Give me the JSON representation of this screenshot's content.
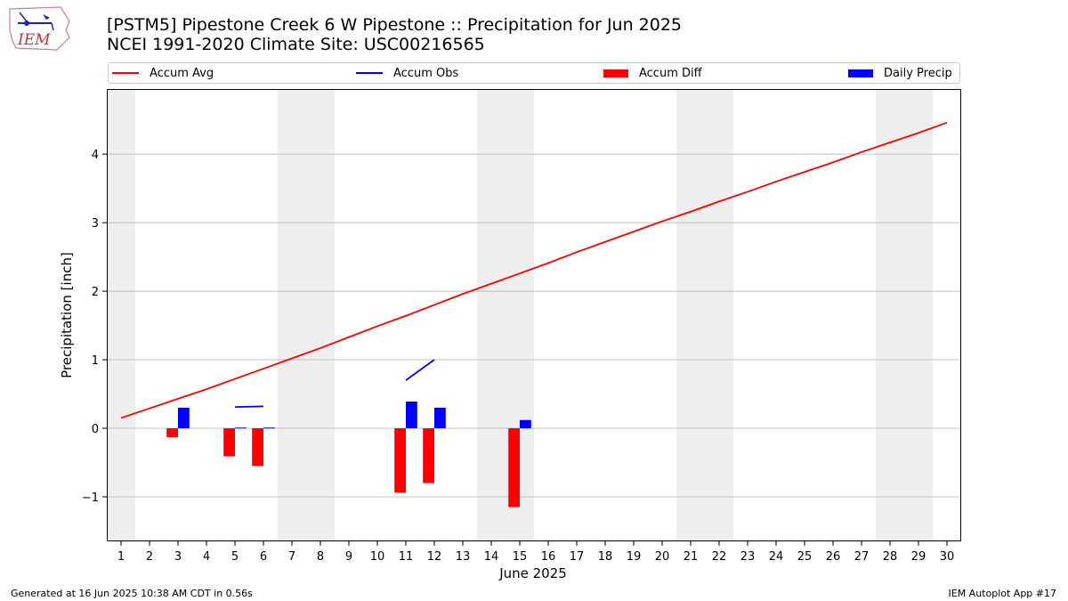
{
  "header": {
    "title_line1": "[PSTM5] Pipestone Creek 6 W Pipestone :: Precipitation for Jun 2025",
    "title_line2": "NCEI 1991-2020 Climate Site: USC00216565"
  },
  "logo": {
    "text": "IEM"
  },
  "footer": {
    "generated": "Generated at 16 Jun 2025 10:38 AM CDT in 0.56s",
    "app": "IEM Autoplot App #17"
  },
  "legend": {
    "placement": "top",
    "items": [
      {
        "label": "Accum Avg",
        "kind": "line",
        "color": "#ff0000"
      },
      {
        "label": "Accum Obs",
        "kind": "line",
        "color": "#0000ff"
      },
      {
        "label": "Accum Diff",
        "kind": "bar",
        "color": "#ff0000"
      },
      {
        "label": "Daily Precip",
        "kind": "bar",
        "color": "#0000ff"
      }
    ]
  },
  "chart_data": {
    "type": "bar",
    "xlabel": "June 2025",
    "ylabel": "Precipitation [inch]",
    "xlim": [
      0.5,
      30.5
    ],
    "ylim": [
      -1.65,
      4.95
    ],
    "yticks": [
      -1,
      0,
      1,
      2,
      3,
      4
    ],
    "x": [
      1,
      2,
      3,
      4,
      5,
      6,
      7,
      8,
      9,
      10,
      11,
      12,
      13,
      14,
      15,
      16,
      17,
      18,
      19,
      20,
      21,
      22,
      23,
      24,
      25,
      26,
      27,
      28,
      29,
      30
    ],
    "grid": "y",
    "weekend_shading": [
      [
        0.5,
        1.5
      ],
      [
        6.5,
        8.5
      ],
      [
        13.5,
        15.5
      ],
      [
        20.5,
        22.5
      ],
      [
        27.5,
        29.5
      ]
    ],
    "shading_color": "#eeeeee",
    "series": [
      {
        "name": "Accum Avg",
        "kind": "line",
        "color": "#ff0000",
        "x": [
          1,
          2,
          3,
          4,
          5,
          6,
          7,
          8,
          9,
          10,
          11,
          12,
          13,
          14,
          15,
          16,
          17,
          18,
          19,
          20,
          21,
          22,
          23,
          24,
          25,
          26,
          27,
          28,
          29,
          30
        ],
        "values": [
          0.15,
          0.29,
          0.43,
          0.57,
          0.72,
          0.87,
          1.02,
          1.17,
          1.33,
          1.49,
          1.64,
          1.8,
          1.96,
          2.11,
          2.26,
          2.41,
          2.57,
          2.72,
          2.87,
          3.02,
          3.16,
          3.31,
          3.45,
          3.6,
          3.74,
          3.88,
          4.03,
          4.17,
          4.31,
          4.46
        ]
      },
      {
        "name": "Accum Obs",
        "kind": "line",
        "color": "#0000ff",
        "segments": [
          {
            "x": [
              5,
              6
            ],
            "values": [
              0.31,
              0.32
            ]
          },
          {
            "x": [
              11,
              12
            ],
            "values": [
              0.7,
              1.0
            ]
          }
        ]
      },
      {
        "name": "Accum Diff",
        "kind": "bar",
        "color": "#ff0000",
        "x": [
          3,
          5,
          6,
          11,
          12,
          15
        ],
        "values": [
          -0.13,
          -0.41,
          -0.55,
          -0.94,
          -0.8,
          -1.15
        ]
      },
      {
        "name": "Daily Precip",
        "kind": "bar",
        "color": "#0000ff",
        "x": [
          3,
          5,
          6,
          11,
          12,
          15
        ],
        "values": [
          0.3,
          0.01,
          0.01,
          0.39,
          0.3,
          0.12
        ]
      }
    ]
  }
}
